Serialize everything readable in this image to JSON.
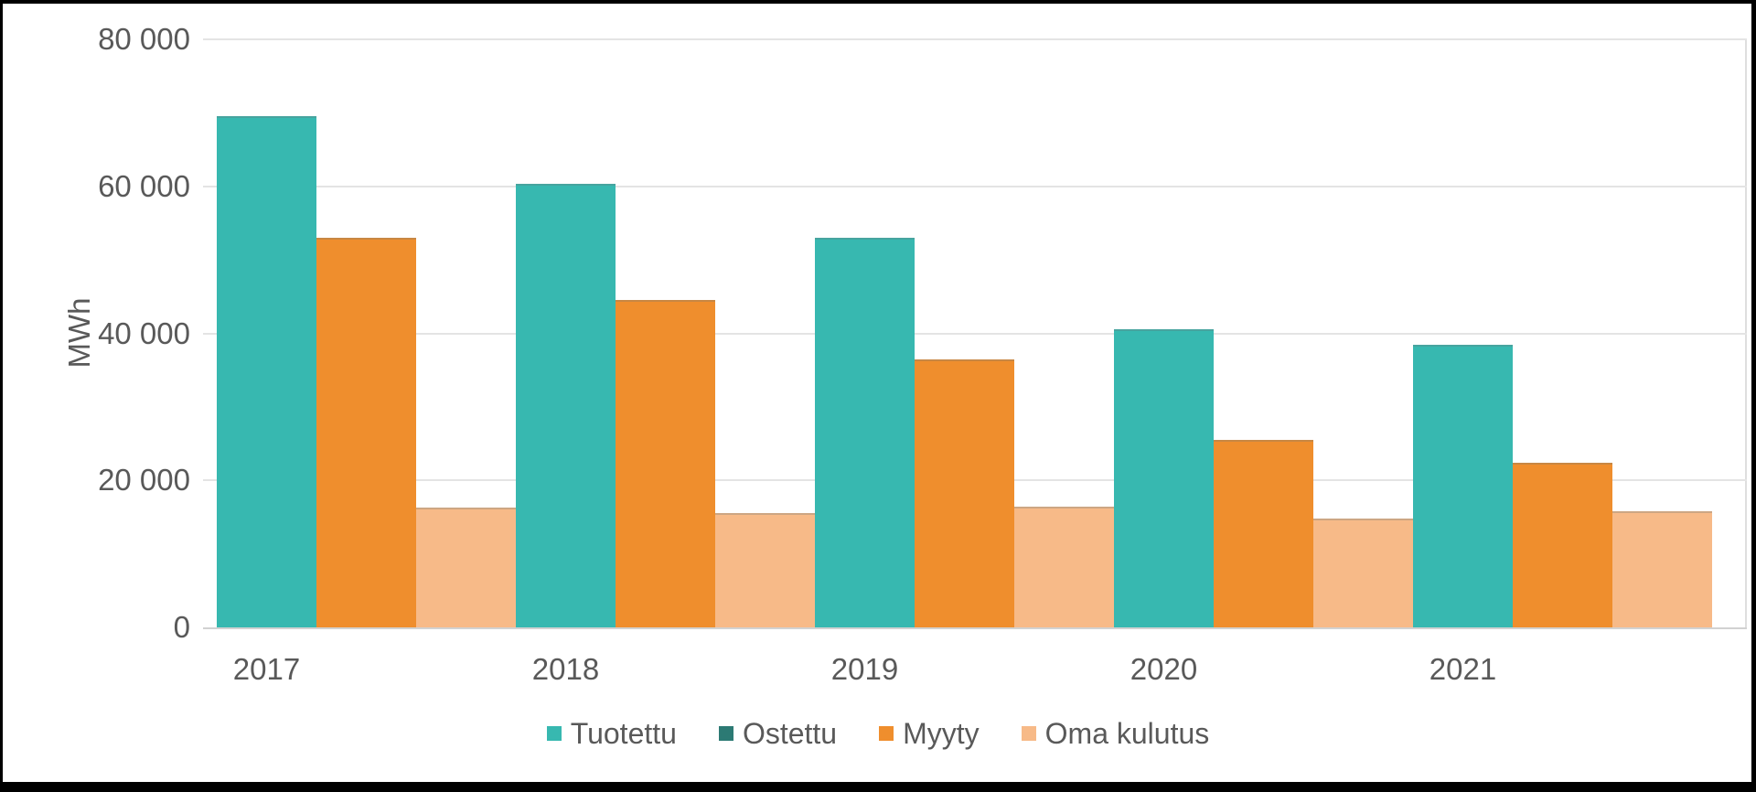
{
  "chart_data": {
    "type": "bar",
    "title": "",
    "categories": [
      "2017",
      "2018",
      "2019",
      "2020",
      "2021"
    ],
    "series": [
      {
        "name": "Tuotettu",
        "color": "#37b8b0",
        "values": [
          69500,
          60300,
          53000,
          40500,
          38500
        ]
      },
      {
        "name": "Ostettu",
        "color": "#2c7a74",
        "values": [
          0,
          0,
          0,
          0,
          0
        ]
      },
      {
        "name": "Myyty",
        "color": "#ef8e2d",
        "values": [
          53000,
          44500,
          36500,
          25500,
          22400
        ]
      },
      {
        "name": "Oma kulutus",
        "color": "#f7ba88",
        "values": [
          16300,
          15600,
          16400,
          14800,
          15800
        ]
      }
    ],
    "xlabel": "",
    "ylabel": "MWh",
    "ylim": [
      0,
      80000
    ],
    "ytick_step": 20000,
    "ytick_labels": [
      "0",
      "20 000",
      "40 000",
      "60 000",
      "80 000"
    ],
    "grid": true,
    "legend_position": "bottom",
    "colors": {
      "text": "#595959",
      "gridline": "#e4e4e4",
      "axis_line": "#d2d2d2",
      "background": "#ffffff",
      "frame": "#000000"
    }
  }
}
